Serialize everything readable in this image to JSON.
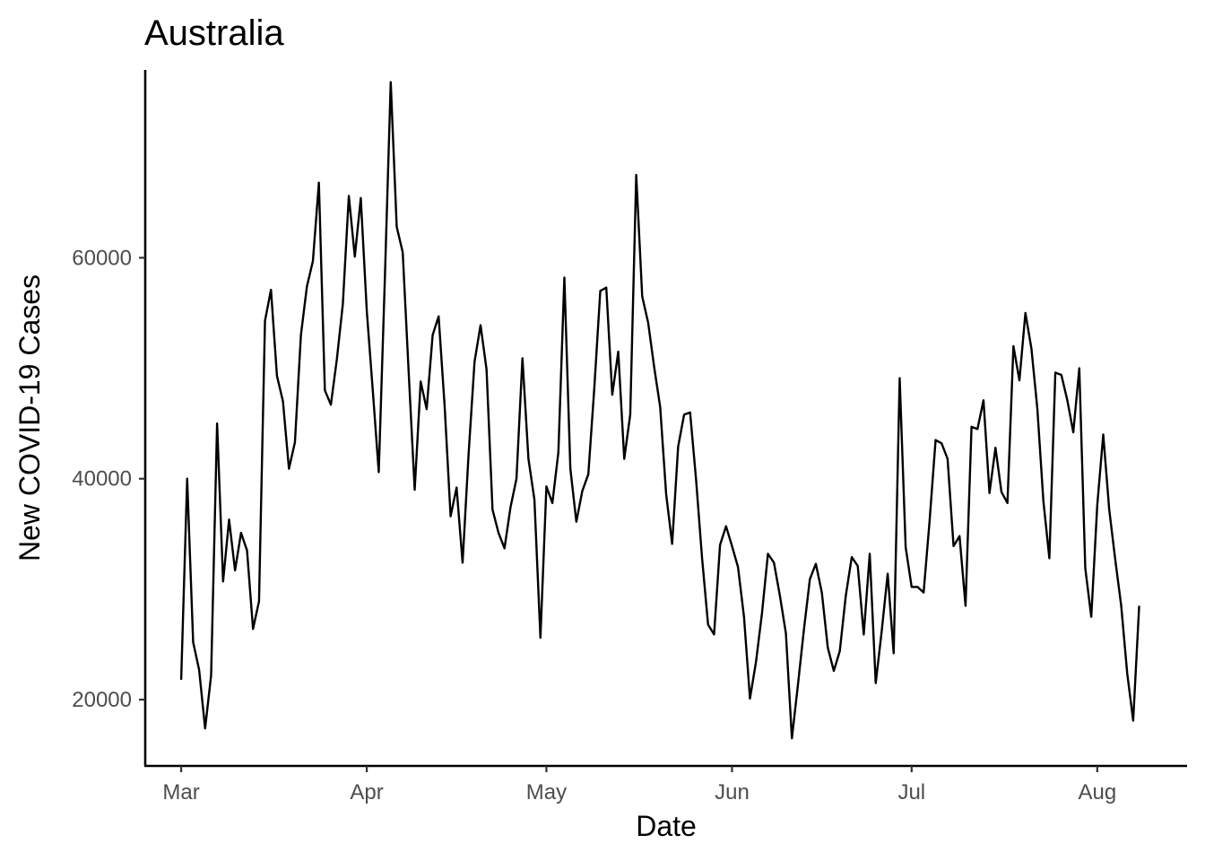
{
  "chart_data": {
    "type": "line",
    "title": "Australia",
    "xlabel": "Date",
    "ylabel": "New COVID-19 Cases",
    "x_start": "2020-03-01",
    "x_end": "2020-08-09",
    "xlim": [
      "2020-02-24",
      "2020-08-16"
    ],
    "ylim": [
      14000,
      77000
    ],
    "grid": false,
    "legend": "none",
    "x_ticks": [
      {
        "date": "2020-03-01",
        "label": "Mar"
      },
      {
        "date": "2020-04-01",
        "label": "Apr"
      },
      {
        "date": "2020-05-01",
        "label": "May"
      },
      {
        "date": "2020-06-01",
        "label": "Jun"
      },
      {
        "date": "2020-07-01",
        "label": "Jul"
      },
      {
        "date": "2020-08-01",
        "label": "Aug"
      }
    ],
    "y_ticks": [
      {
        "value": 20000,
        "label": "20000"
      },
      {
        "value": 40000,
        "label": "40000"
      },
      {
        "value": 60000,
        "label": "60000"
      }
    ],
    "series": [
      {
        "values": [
          21800,
          40000,
          25200,
          22700,
          17400,
          22200,
          45000,
          30700,
          36300,
          31700,
          35100,
          33500,
          26400,
          28900,
          54300,
          57100,
          49300,
          47000,
          40900,
          43300,
          53000,
          57400,
          59700,
          66800,
          48000,
          46700,
          50800,
          55800,
          65600,
          60100,
          65400,
          55200,
          48000,
          40600,
          57800,
          75900,
          62800,
          60500,
          49600,
          39000,
          48800,
          46300,
          53000,
          54700,
          46600,
          36600,
          39200,
          32400,
          42200,
          50600,
          53900,
          49900,
          37200,
          35100,
          33700,
          37400,
          40000,
          50900,
          41800,
          38100,
          25600,
          39300,
          37800,
          42400,
          58200,
          40900,
          36100,
          38900,
          40400,
          48200,
          57000,
          57300,
          47600,
          51500,
          41800,
          45800,
          67500,
          56500,
          54100,
          50100,
          46500,
          38600,
          34100,
          42900,
          45800,
          46000,
          39900,
          32800,
          26800,
          25900,
          34000,
          35700,
          33900,
          32000,
          27500,
          20100,
          23400,
          27800,
          33200,
          32400,
          29400,
          26000,
          16500,
          21300,
          26300,
          30900,
          32300,
          29700,
          24700,
          22600,
          24400,
          29400,
          32900,
          32100,
          25900,
          33200,
          21500,
          26200,
          31400,
          24200,
          49100,
          33800,
          30200,
          30200,
          29700,
          36200,
          43500,
          43200,
          41800,
          33900,
          34800,
          28500,
          44700,
          44500,
          47100,
          38700,
          42800,
          38800,
          37800,
          52000,
          48900,
          55000,
          51800,
          46300,
          38000,
          32800,
          49600,
          49400,
          47100,
          44200,
          50000,
          31900,
          27500,
          37600,
          44000,
          37200,
          32700,
          28500,
          22400,
          18100,
          28500
        ]
      }
    ]
  }
}
